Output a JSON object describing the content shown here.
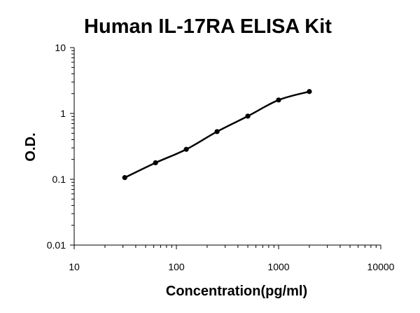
{
  "chart_data": {
    "type": "scatter",
    "title": "Human IL-17RA ELISA Kit",
    "xlabel": "Concentration(pg/ml)",
    "ylabel": "O.D.",
    "xscale": "log",
    "yscale": "log",
    "xlim": [
      10,
      10000
    ],
    "ylim": [
      0.01,
      10
    ],
    "xticks": [
      10,
      100,
      1000,
      10000
    ],
    "yticks": [
      0.01,
      0.1,
      1,
      10
    ],
    "xtick_labels": [
      "10",
      "100",
      "1000",
      "10000"
    ],
    "ytick_labels": [
      "0.01",
      "0.1",
      "1",
      "10"
    ],
    "grid": false,
    "legend": "none",
    "fit_line": true,
    "series": [
      {
        "x": [
          31.25,
          62.5,
          125,
          250,
          500,
          1000,
          2000
        ],
        "y": [
          0.106,
          0.178,
          0.285,
          0.53,
          0.91,
          1.6,
          2.15
        ]
      }
    ]
  }
}
